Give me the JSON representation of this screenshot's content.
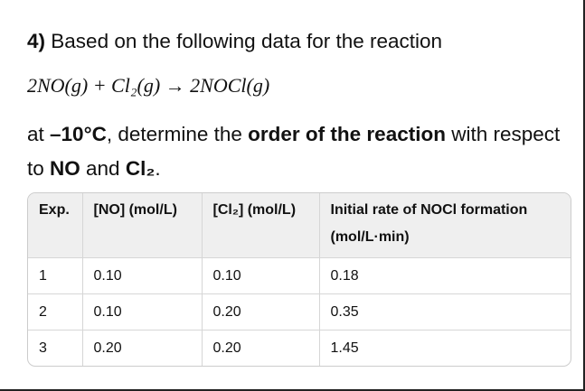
{
  "question": {
    "number": "4)",
    "intro": "Based on the following data for the reaction",
    "equation": "2NO(g) + Cl₂(g) → 2NOCl(g)",
    "body": [
      "at ",
      "–10°C",
      ", determine the ",
      "order of the reaction",
      " with respect to ",
      "NO",
      " and ",
      "Cl₂",
      "."
    ]
  },
  "table": {
    "headers": [
      "Exp.",
      "[NO] (mol/L)",
      "[Cl₂] (mol/L)",
      "Initial rate of NOCl formation (mol/L·min)"
    ],
    "rows": [
      [
        "1",
        "0.10",
        "0.10",
        "0.18"
      ],
      [
        "2",
        "0.10",
        "0.20",
        "0.35"
      ],
      [
        "3",
        "0.20",
        "0.20",
        "1.45"
      ]
    ]
  }
}
